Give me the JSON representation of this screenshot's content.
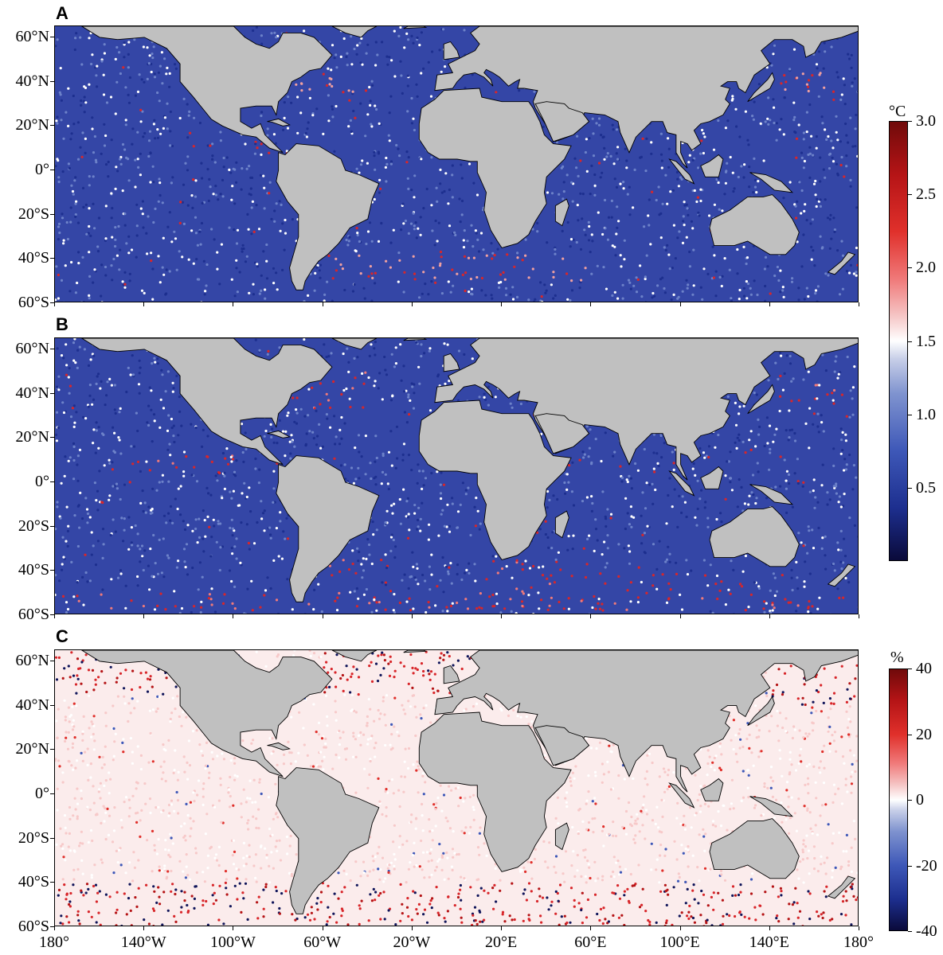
{
  "panels": [
    {
      "letter": "A",
      "variable": "temperature"
    },
    {
      "letter": "B",
      "variable": "temperature"
    },
    {
      "letter": "C",
      "variable": "percent"
    }
  ],
  "lat_labels": [
    "60°N",
    "40°N",
    "20°N",
    "0°",
    "20°S",
    "40°S",
    "60°S"
  ],
  "lon_labels": [
    "180°",
    "140°W",
    "100°W",
    "60°W",
    "20°W",
    "20°E",
    "60°E",
    "100°E",
    "140°E",
    "180°"
  ],
  "colorbar_temp": {
    "unit": "°C",
    "ticks": [
      "3.0",
      "2.5",
      "2.0",
      "1.5",
      "1.0",
      "0.5"
    ],
    "range": [
      0,
      3.0
    ]
  },
  "colorbar_pct": {
    "unit": "%",
    "ticks": [
      "40",
      "20",
      "0",
      "-20",
      "-40"
    ],
    "range": [
      -40,
      40
    ]
  },
  "colors": {
    "land": "#c0c0c0",
    "ocean_blue": "#3446a6",
    "ocean_pale": "#fbecec",
    "warm": "#d8262a",
    "deep_blue": "#10155a"
  }
}
